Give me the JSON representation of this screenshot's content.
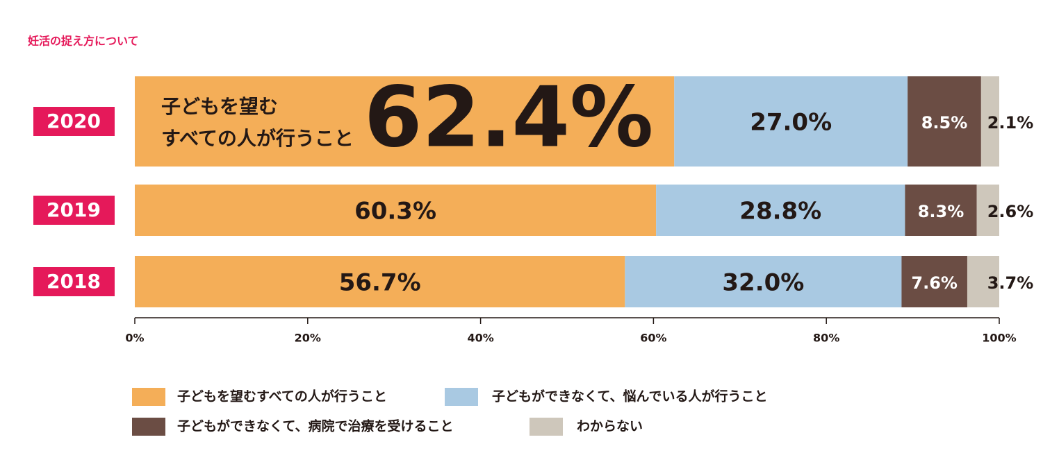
{
  "chart_data": {
    "type": "stacked-bar",
    "title": "妊活の捉え方について",
    "annotation": [
      "子どもを望む",
      "すべての人が行うこと"
    ],
    "categories": [
      "2020",
      "2019",
      "2018"
    ],
    "series": [
      {
        "name": "子どもを望むすべての人が行うこと",
        "color": "#f4ae58",
        "values": [
          62.4,
          60.3,
          56.7
        ],
        "value_labels": [
          "62.4%",
          "60.3%",
          "56.7%"
        ]
      },
      {
        "name": "子どもができなくて、悩んでいる人が行うこと",
        "color": "#a9c9e2",
        "values": [
          27.0,
          28.8,
          32.0
        ],
        "value_labels": [
          "27.0%",
          "28.8%",
          "32.0%"
        ]
      },
      {
        "name": "子どもができなくて、病院で治療を受けること",
        "color": "#6b4d44",
        "values": [
          8.5,
          8.3,
          7.6
        ],
        "value_labels": [
          "8.5%",
          "8.3%",
          "7.6%"
        ]
      },
      {
        "name": "わからない",
        "color": "#cec7bb",
        "values": [
          2.1,
          2.6,
          3.7
        ],
        "value_labels": [
          "2.1%",
          "2.6%",
          "3.7%"
        ]
      }
    ],
    "xlim": [
      0,
      100
    ],
    "xticks": [
      {
        "value": 0,
        "label": "0%"
      },
      {
        "value": 20,
        "label": "20%"
      },
      {
        "value": 40,
        "label": "40%"
      },
      {
        "value": 60,
        "label": "60%"
      },
      {
        "value": 80,
        "label": "80%"
      },
      {
        "value": 100,
        "label": "100%"
      }
    ]
  }
}
